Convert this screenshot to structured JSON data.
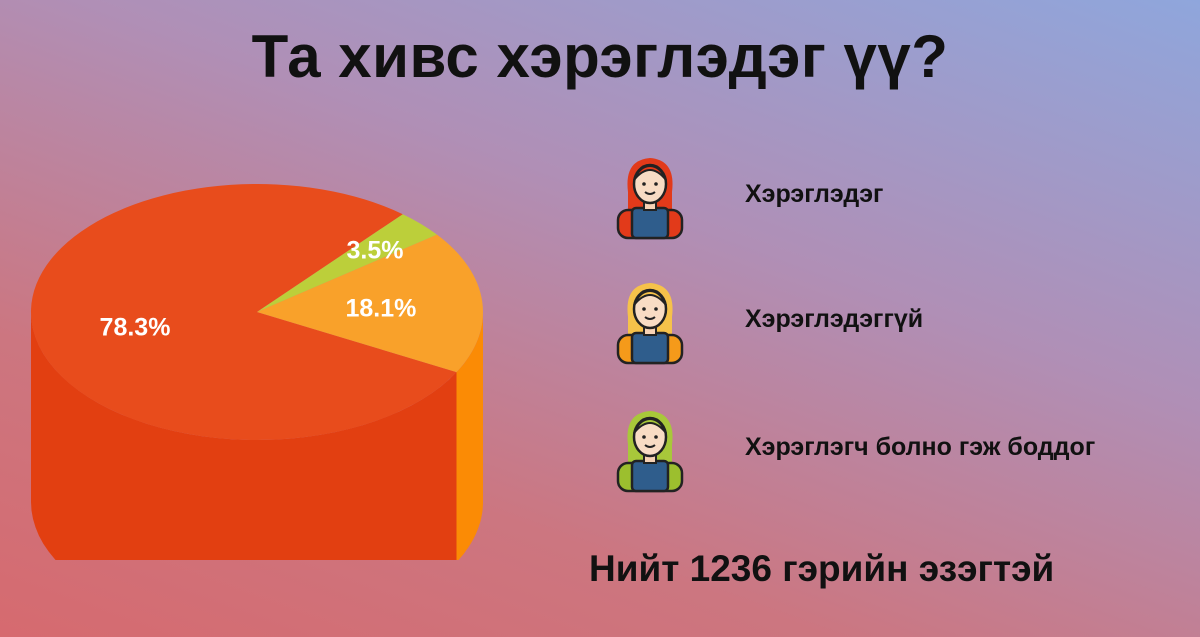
{
  "title": "Та хивс хэрэглэдэг үү?",
  "legend": [
    {
      "label": "Хэрэглэдэг",
      "icon": "woman-red-hair-icon",
      "color": "#e84c1c"
    },
    {
      "label": "Хэрэглэдэггүй",
      "icon": "woman-blonde-hair-icon",
      "color": "#f9a12a"
    },
    {
      "label": "Хэрэглэгч болно гэж боддог",
      "icon": "woman-green-hair-icon",
      "color": "#bccf3a"
    }
  ],
  "total_label": "Нийт 1236 гэрийн эзэгтэй",
  "chart_data": {
    "type": "pie",
    "style": "3d",
    "title": "Та хивс хэрэглэдэг үү?",
    "slices": [
      {
        "name": "Хэрэглэдэг",
        "value": 78.3,
        "label": "78.3%",
        "color": "#e84c1c",
        "side_color": "#e23f11"
      },
      {
        "name": "Хэрэглэдэггүй",
        "value": 18.1,
        "label": "18.1%",
        "color": "#f9a12a",
        "side_color": "#fb8b05"
      },
      {
        "name": "Хэрэглэгч болно гэж боддог",
        "value": 3.5,
        "label": "3.5%",
        "color": "#bccf3a",
        "side_color": "#a3a62e"
      }
    ]
  }
}
